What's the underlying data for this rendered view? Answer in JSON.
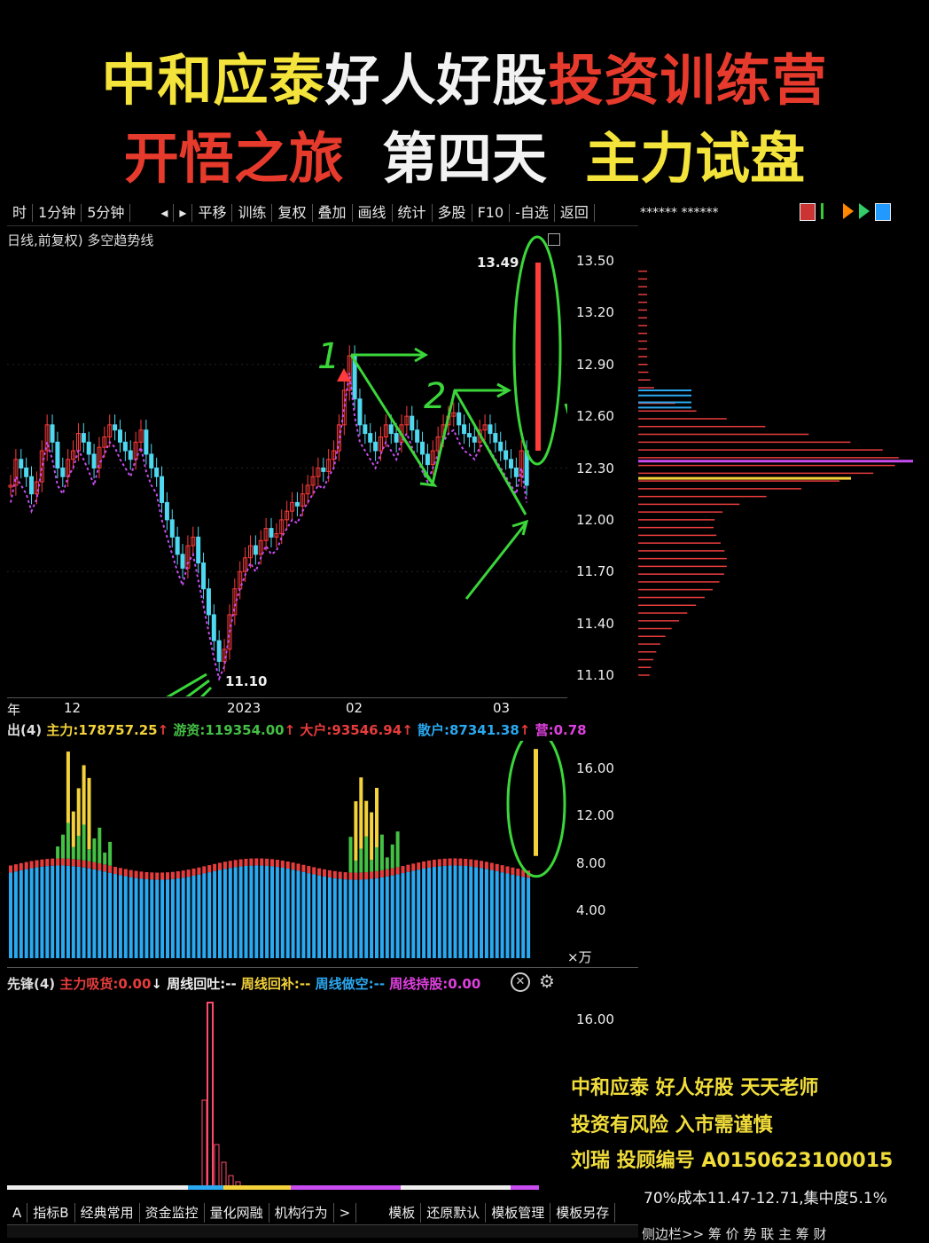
{
  "overlay_title": {
    "line1_yellow": "中和应泰",
    "line1_white": "好人好股",
    "line1_red": "投资训练营",
    "line2_red": "开悟之旅",
    "line2_white": "第四天",
    "line2_yellow": "主力试盘"
  },
  "toolbar": {
    "items": [
      "时",
      "1分钟",
      "5分钟",
      "◂",
      "▸",
      "平移",
      "训练",
      "复权",
      "叠加",
      "画线",
      "统计",
      "多股",
      "F10",
      "-自选",
      "返回"
    ],
    "stock_name": "****** ******"
  },
  "main_chart": {
    "label": "日线,前复权) 多空趋势线",
    "y_ticks": [
      "13.50",
      "13.20",
      "12.90",
      "12.60",
      "12.30",
      "12.00",
      "11.70",
      "11.40",
      "11.10"
    ],
    "high_label": "13.49",
    "low_label": "11.10",
    "x_ticks": [
      "年",
      "12",
      "2023",
      "02",
      "03"
    ],
    "annotations": [
      "1",
      "2"
    ]
  },
  "indicator1": {
    "name": "出(4)",
    "main_label": "主力:178757.25",
    "youzi_label": "游资:119354.00",
    "dahu_label": "大户:93546.94",
    "sanhu_label": "散户:87341.38",
    "extra_label": "营:0.78",
    "y_ticks": [
      "16.00",
      "12.00",
      "8.00",
      "4.00"
    ],
    "unit": "万",
    "colors": {
      "main": "#f3d23b",
      "youzi": "#44c044",
      "dahu": "#e83c3c",
      "sanhu": "#2aa8f0"
    }
  },
  "indicator2": {
    "name": "先锋(4)",
    "l1": "主力吸货:0.00",
    "l2": "周线回吐:--",
    "l3": "周线回补:--",
    "l4": "周线做空:--",
    "l5": "周线持股:0.00",
    "y_tick": "16.00"
  },
  "watermark": {
    "line1": "中和应泰  好人好股   天天老师",
    "line2": "投资有风险      入市需谨慎",
    "line3": "刘瑞 投顾编号 A0150623100015"
  },
  "cost_distribution": {
    "text": "70%成本11.47-12.71,集中度5.1%"
  },
  "bottom_tabs": [
    "A",
    "指标B",
    "经典常用",
    "资金监控",
    "量化网融",
    "机构行为",
    ">",
    "模板",
    "还原默认",
    "模板管理",
    "模板另存"
  ],
  "bottom_right": "侧边栏>>  筹  价  势  联  主  筹  财"
}
